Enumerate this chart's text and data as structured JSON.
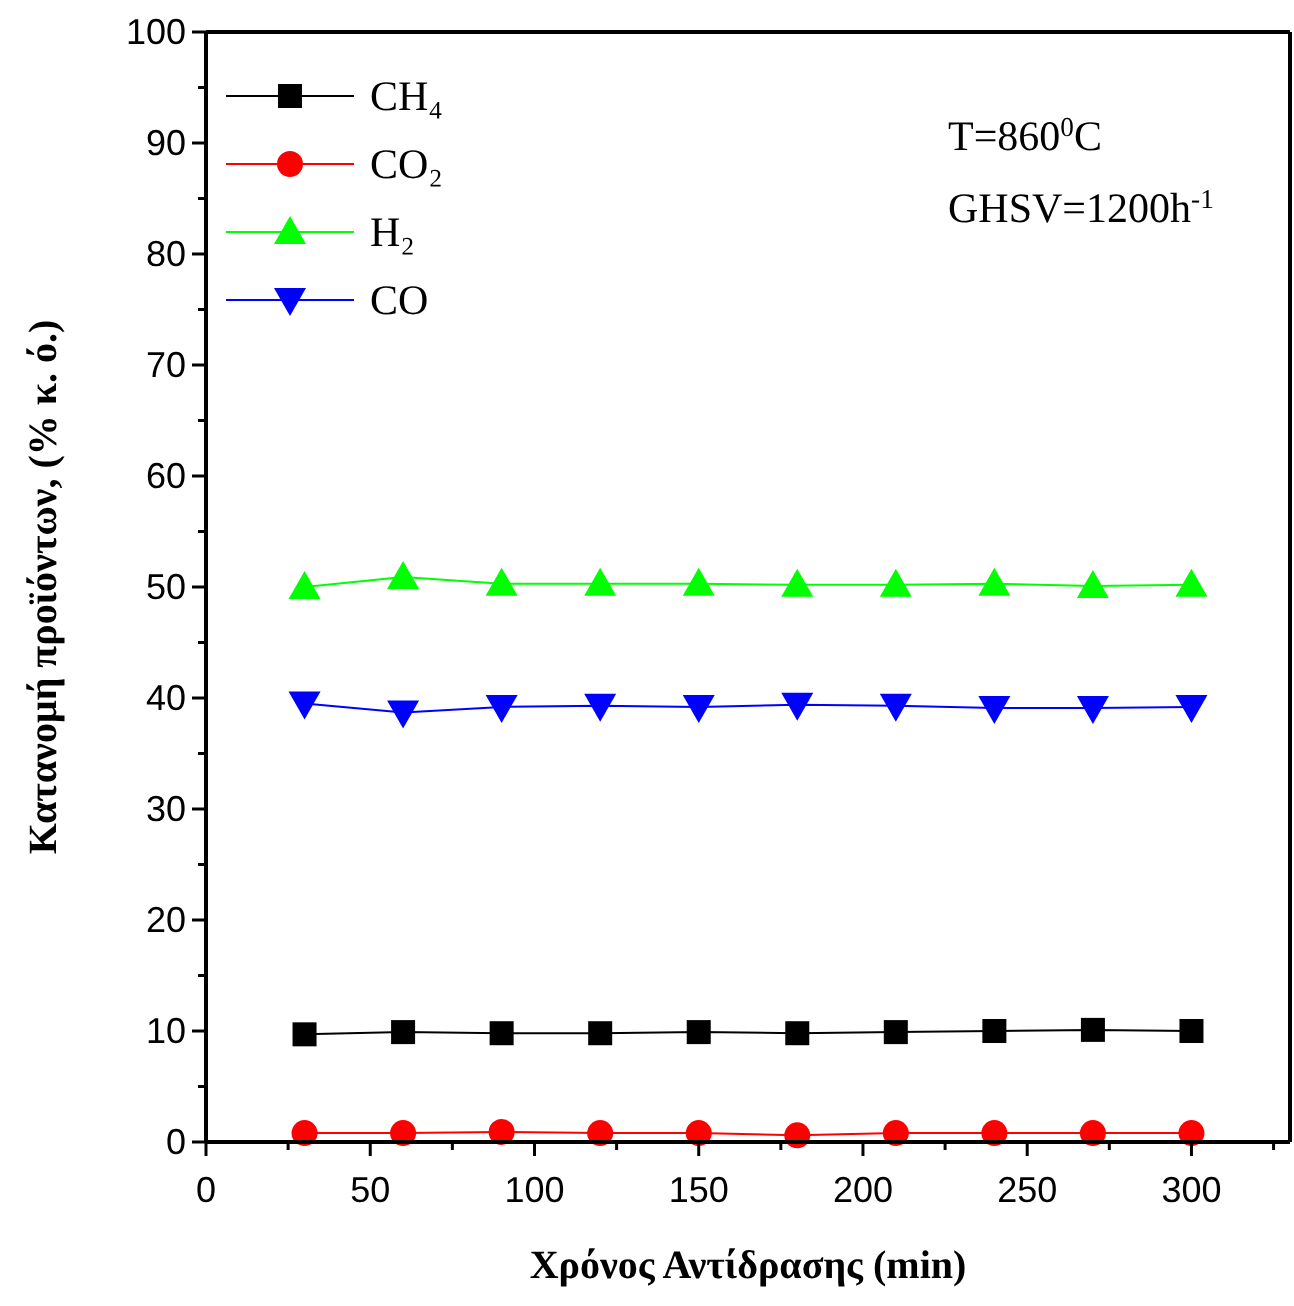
{
  "chart_data": {
    "type": "line",
    "xlabel": "Χρόνος Αντίδρασης (min)",
    "ylabel": "Κατανομή προϊόντων, (% κ. ό.)",
    "annotations": [
      "T=860$^{0}$C",
      "GHSV=1200h$^{-1}$"
    ],
    "x": [
      30,
      60,
      90,
      120,
      150,
      180,
      210,
      240,
      270,
      300
    ],
    "series": [
      {
        "name": "CH₄",
        "color": "#000000",
        "marker": "square",
        "values": [
          9.7,
          9.9,
          9.8,
          9.8,
          9.9,
          9.8,
          9.9,
          10.0,
          10.1,
          10.0
        ]
      },
      {
        "name": "CO₂",
        "color": "#ff0000",
        "marker": "circle",
        "values": [
          0.8,
          0.8,
          0.9,
          0.8,
          0.8,
          0.6,
          0.8,
          0.8,
          0.8,
          0.8
        ]
      },
      {
        "name": "H₂",
        "color": "#00ff00",
        "marker": "triangle",
        "values": [
          50.0,
          50.9,
          50.3,
          50.3,
          50.3,
          50.2,
          50.2,
          50.3,
          50.1,
          50.2
        ]
      },
      {
        "name": "CO",
        "color": "#0000ff",
        "marker": "triangle-down",
        "values": [
          39.5,
          38.7,
          39.2,
          39.3,
          39.2,
          39.4,
          39.3,
          39.1,
          39.1,
          39.2
        ]
      }
    ],
    "xlim": [
      0,
      330
    ],
    "xticks": [
      0,
      {
        "value": 25,
        "label": null
      },
      50,
      {
        "value": 75,
        "label": null
      },
      100,
      {
        "value": 125,
        "label": null
      },
      150,
      {
        "value": 175,
        "label": null
      },
      200,
      {
        "value": 225,
        "label": null
      },
      250,
      {
        "value": 275,
        "label": null
      },
      300,
      {
        "value": 325,
        "label": null
      }
    ],
    "ylim": [
      0,
      100
    ],
    "yticks": [
      0,
      {
        "value": 5,
        "label": null
      },
      10,
      {
        "value": 15,
        "label": null
      },
      20,
      {
        "value": 25,
        "label": null
      },
      30,
      {
        "value": 35,
        "label": null
      },
      40,
      {
        "value": 45,
        "label": null
      },
      50,
      {
        "value": 55,
        "label": null
      },
      60,
      {
        "value": 65,
        "label": null
      },
      70,
      {
        "value": 75,
        "label": null
      },
      80,
      {
        "value": 85,
        "label": null
      },
      90,
      {
        "value": 95,
        "label": null
      },
      100
    ],
    "legend": "top left",
    "grid": false,
    "line_style": "solid"
  }
}
